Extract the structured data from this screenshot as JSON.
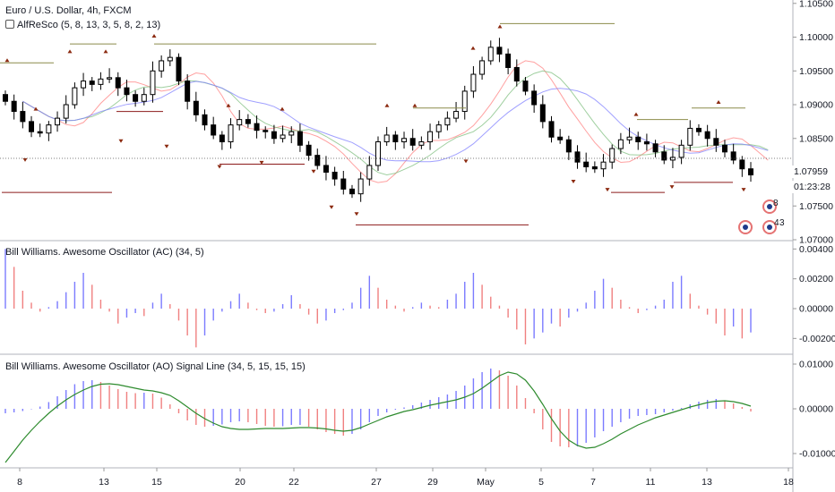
{
  "main_legend": {
    "title": "Euro / U.S. Dollar, 4h, FXCM",
    "indicator": "AlfReSco (5, 8, 13, 3, 5, 8, 2, 13)"
  },
  "ac_legend": "Bill Williams. Awesome Oscillator (AC) (34, 5)",
  "ao_legend": "Bill Williams. Awesome Oscillator (AO) Signal Line (34, 5, 15, 15, 15)",
  "price_axis": [
    "1.10500",
    "1.10000",
    "1.09500",
    "1.09000",
    "1.08500",
    "1.08000",
    "1.07500",
    "1.07000"
  ],
  "current_price": "1.07959",
  "countdown": "01:23:28",
  "ac_axis": [
    "0.00400",
    "0.00200",
    "0.00000",
    "-0.00200"
  ],
  "ao_axis": [
    "0.01000",
    "0.00000",
    "-0.01000"
  ],
  "x_axis": [
    "8",
    "13",
    "15",
    "20",
    "22",
    "27",
    "29",
    "May",
    "5",
    "7",
    "11",
    "13",
    "18"
  ],
  "event_icons": [
    {
      "label": "8",
      "icon": "event-flag-icon"
    },
    {
      "label": "4",
      "icon": "event-flag-icon"
    },
    {
      "label": "3",
      "icon": "event-flag-icon"
    }
  ],
  "colors": {
    "candle": "#000000",
    "histogram_up": "#7b7bff",
    "histogram_down": "#f08080",
    "signal_line": "#2e8b2e",
    "fractal_marker": "#8b2a10",
    "resistance_line": "#8b8b4a",
    "support_line": "#8b1a1a",
    "ma_red": "#ff8080",
    "ma_green": "#7fbf7f",
    "ma_blue": "#8080ff"
  },
  "chart_data": [
    {
      "type": "candlestick",
      "title": "Euro / U.S. Dollar, 4h, FXCM",
      "ylim": [
        1.07,
        1.1055
      ],
      "close": [
        1.0905,
        1.089,
        1.0875,
        1.086,
        1.0858,
        1.087,
        1.088,
        1.09,
        1.0925,
        1.0935,
        1.093,
        1.0938,
        1.094,
        1.0925,
        1.0915,
        1.0905,
        1.0915,
        1.095,
        1.0965,
        1.097,
        1.0935,
        1.0905,
        1.0885,
        1.087,
        1.0855,
        1.0845,
        1.087,
        1.0878,
        1.0872,
        1.0862,
        1.086,
        1.085,
        1.0855,
        1.086,
        1.084,
        1.0825,
        1.081,
        1.08,
        1.079,
        1.0775,
        1.0768,
        1.079,
        1.081,
        1.0845,
        1.0855,
        1.0845,
        1.085,
        1.084,
        1.0845,
        1.086,
        1.087,
        1.088,
        1.089,
        1.092,
        1.0945,
        1.0965,
        1.0985,
        1.0975,
        1.0955,
        1.0935,
        1.092,
        1.09,
        1.0875,
        1.0852,
        1.0848,
        1.083,
        1.0815,
        1.0808,
        1.0805,
        1.0815,
        1.0835,
        1.0848,
        1.0852,
        1.0845,
        1.0842,
        1.083,
        1.0818,
        1.0822,
        1.084,
        1.0865,
        1.086,
        1.085,
        1.084,
        1.083,
        1.0818,
        1.0805,
        1.0796
      ],
      "ma_lines": [
        "red",
        "green",
        "blue"
      ],
      "horizontal_levels": [
        1.0962,
        1.099,
        1.102,
        1.0895,
        1.089,
        1.0878,
        1.0875,
        1.0812,
        1.077,
        1.0722,
        1.0782,
        1.0763,
        1.0782
      ]
    },
    {
      "type": "bar",
      "title": "Bill Williams. Awesome Oscillator (AC) (34, 5)",
      "ylim": [
        -0.003,
        0.0045
      ],
      "values": [
        0.004,
        0.0028,
        0.0012,
        0.0004,
        -0.0002,
        0.0001,
        0.0005,
        0.0011,
        0.0018,
        0.0024,
        0.0016,
        0.0006,
        -0.0002,
        -0.001,
        -0.0006,
        -0.0003,
        -0.0005,
        0.0004,
        0.001,
        0.0003,
        -0.0008,
        -0.0018,
        -0.0026,
        -0.0018,
        -0.0008,
        -0.0002,
        0.0005,
        0.001,
        0.0004,
        -0.0001,
        -0.0003,
        -0.0002,
        0.0003,
        0.0009,
        0.0003,
        -0.0004,
        -0.001,
        -0.0008,
        -0.0003,
        -0.0001,
        0.0004,
        0.0014,
        0.0022,
        0.0014,
        0.0006,
        0.0002,
        -0.0002,
        0.0001,
        0.0004,
        0.0002,
        0.0001,
        0.0006,
        0.001,
        0.0018,
        0.0024,
        0.0016,
        0.0008,
        0.0002,
        -0.0006,
        -0.0014,
        -0.0024,
        -0.002,
        -0.0016,
        -0.001,
        -0.0012,
        -0.0006,
        -0.0002,
        0.0004,
        0.0012,
        0.002,
        0.0014,
        0.0006,
        0.0001,
        -0.0003,
        -0.0001,
        0.0002,
        0.0006,
        0.0018,
        0.0022,
        0.001,
        0.0002,
        -0.0004,
        -0.001,
        -0.0018,
        -0.0012,
        -0.002,
        -0.0016
      ]
    },
    {
      "type": "bar",
      "title": "Bill Williams. Awesome Oscillator (AO) Signal Line (34, 5, 15, 15, 15)",
      "ylim": [
        -0.013,
        0.012
      ],
      "values": [
        -0.001,
        -0.0008,
        -0.0005,
        -0.0001,
        0.0005,
        0.0015,
        0.0028,
        0.0042,
        0.0055,
        0.0062,
        0.0064,
        0.006,
        0.0052,
        0.0044,
        0.0038,
        0.0035,
        0.0036,
        0.0034,
        0.0025,
        0.001,
        -0.001,
        -0.0026,
        -0.0036,
        -0.004,
        -0.0038,
        -0.0035,
        -0.003,
        -0.0028,
        -0.003,
        -0.0034,
        -0.0038,
        -0.004,
        -0.0039,
        -0.0036,
        -0.0036,
        -0.004,
        -0.0046,
        -0.0052,
        -0.0056,
        -0.006,
        -0.0056,
        -0.0046,
        -0.003,
        -0.0016,
        -0.0008,
        -0.0002,
        0.0003,
        0.0008,
        0.0014,
        0.002,
        0.0026,
        0.0032,
        0.004,
        0.0052,
        0.0068,
        0.0082,
        0.009,
        0.0086,
        0.0074,
        0.0052,
        0.0024,
        -0.001,
        -0.0046,
        -0.0074,
        -0.0084,
        -0.0086,
        -0.0084,
        -0.0076,
        -0.0064,
        -0.005,
        -0.004,
        -0.003,
        -0.0022,
        -0.0016,
        -0.0014,
        -0.0012,
        -0.0008,
        -0.0004,
        0.0002,
        0.001,
        0.0016,
        0.002,
        0.0022,
        0.0018,
        0.0012,
        0.0004,
        -0.0006
      ],
      "signal": [
        -0.012,
        -0.0095,
        -0.007,
        -0.0048,
        -0.0028,
        -0.001,
        0.0006,
        0.002,
        0.0032,
        0.0042,
        0.005,
        0.0055,
        0.0056,
        0.0054,
        0.005,
        0.0046,
        0.0042,
        0.004,
        0.0036,
        0.003,
        0.0018,
        0.0004,
        -0.001,
        -0.0022,
        -0.0032,
        -0.004,
        -0.0044,
        -0.0046,
        -0.0046,
        -0.0045,
        -0.0044,
        -0.0044,
        -0.0044,
        -0.0043,
        -0.0042,
        -0.0042,
        -0.0043,
        -0.0045,
        -0.0048,
        -0.005,
        -0.0048,
        -0.0042,
        -0.0034,
        -0.0026,
        -0.0018,
        -0.0012,
        -0.0006,
        -0.0002,
        0.0003,
        0.0008,
        0.0012,
        0.0016,
        0.002,
        0.0026,
        0.0034,
        0.0046,
        0.006,
        0.0074,
        0.0082,
        0.0078,
        0.0064,
        0.004,
        0.001,
        -0.0022,
        -0.005,
        -0.007,
        -0.0082,
        -0.0088,
        -0.0086,
        -0.0078,
        -0.0068,
        -0.0056,
        -0.0046,
        -0.0036,
        -0.0028,
        -0.002,
        -0.0014,
        -0.0008,
        -0.0002,
        0.0004,
        0.0009,
        0.0014,
        0.0017,
        0.0018,
        0.0016,
        0.0012,
        0.0006
      ]
    }
  ]
}
